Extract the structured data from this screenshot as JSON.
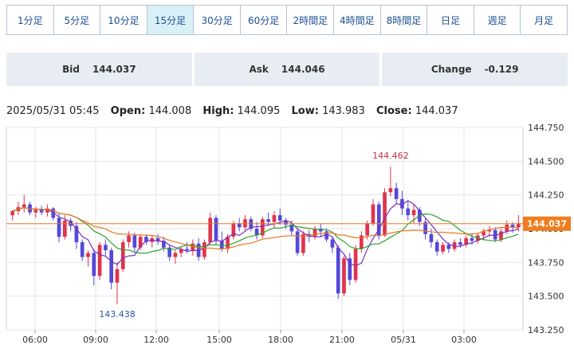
{
  "timeframes": {
    "active_index": 3,
    "items": [
      "1分足",
      "5分足",
      "10分足",
      "15分足",
      "30分足",
      "60分足",
      "2時間足",
      "4時間足",
      "8時間足",
      "日足",
      "週足",
      "月足"
    ]
  },
  "quotes": {
    "bid_label": "Bid",
    "bid_value": "144.037",
    "ask_label": "Ask",
    "ask_value": "144.046",
    "change_label": "Change",
    "change_value": "-0.129"
  },
  "ohlc": {
    "date": "2025/05/31 05:45",
    "open_label": "Open:",
    "open_value": "144.008",
    "high_label": "High:",
    "high_value": "144.095",
    "low_label": "Low:",
    "low_value": "143.983",
    "close_label": "Close:",
    "close_value": "144.037"
  },
  "colors": {
    "up": "#e0334d",
    "down": "#5548d9",
    "ma_fast": "#7b2fbf",
    "ma_mid": "#2aa52a",
    "ma_slow": "#e87722",
    "price_line": "#e87722",
    "price_label_bg": "#f07d1e",
    "grid": "#e6e6e6"
  },
  "chart_data": {
    "type": "candlestick",
    "ylim": [
      143.25,
      144.75
    ],
    "y_ticks": [
      "144.750",
      "144.500",
      "144.250",
      "144.000",
      "143.750",
      "143.500",
      "143.250"
    ],
    "x_ticks": [
      "06:00",
      "09:00",
      "12:00",
      "15:00",
      "18:00",
      "21:00",
      "05/31",
      "03:00"
    ],
    "current_price": "144.037",
    "annotations": {
      "high_label": "144.462",
      "low_label": "143.438"
    },
    "candles": [
      [
        144.1,
        144.14,
        144.06,
        144.13
      ],
      [
        144.13,
        144.2,
        144.1,
        144.16
      ],
      [
        144.16,
        144.25,
        144.12,
        144.18
      ],
      [
        144.18,
        144.2,
        144.1,
        144.12
      ],
      [
        144.12,
        144.16,
        144.08,
        144.14
      ],
      [
        144.14,
        144.17,
        144.1,
        144.12
      ],
      [
        144.12,
        144.18,
        144.09,
        144.15
      ],
      [
        144.15,
        144.16,
        144.06,
        144.08
      ],
      [
        144.08,
        144.12,
        143.9,
        143.94
      ],
      [
        143.94,
        144.1,
        143.92,
        144.06
      ],
      [
        144.06,
        144.08,
        143.98,
        144.02
      ],
      [
        144.02,
        144.05,
        143.85,
        143.9
      ],
      [
        143.9,
        143.92,
        143.76,
        143.79
      ],
      [
        143.79,
        143.84,
        143.72,
        143.82
      ],
      [
        143.82,
        143.85,
        143.58,
        143.65
      ],
      [
        143.65,
        143.9,
        143.62,
        143.88
      ],
      [
        143.88,
        143.92,
        143.8,
        143.84
      ],
      [
        143.84,
        143.86,
        143.55,
        143.6
      ],
      [
        143.6,
        143.75,
        143.44,
        143.7
      ],
      [
        143.7,
        143.92,
        143.68,
        143.9
      ],
      [
        143.9,
        143.98,
        143.86,
        143.95
      ],
      [
        143.95,
        143.97,
        143.82,
        143.86
      ],
      [
        143.86,
        143.96,
        143.84,
        143.94
      ],
      [
        143.94,
        143.96,
        143.88,
        143.9
      ],
      [
        143.9,
        143.95,
        143.86,
        143.93
      ],
      [
        143.93,
        143.96,
        143.88,
        143.91
      ],
      [
        143.91,
        143.94,
        143.83,
        143.86
      ],
      [
        143.86,
        143.88,
        143.76,
        143.79
      ],
      [
        143.79,
        143.84,
        143.74,
        143.82
      ],
      [
        143.82,
        143.87,
        143.79,
        143.85
      ],
      [
        143.85,
        143.9,
        143.82,
        143.84
      ],
      [
        143.84,
        143.92,
        143.8,
        143.89
      ],
      [
        143.89,
        143.93,
        143.76,
        143.79
      ],
      [
        143.79,
        143.92,
        143.77,
        143.9
      ],
      [
        143.9,
        144.12,
        143.88,
        144.08
      ],
      [
        144.08,
        144.1,
        143.88,
        143.91
      ],
      [
        143.91,
        143.98,
        143.83,
        143.85
      ],
      [
        143.85,
        143.96,
        143.82,
        143.94
      ],
      [
        143.94,
        144.06,
        143.92,
        144.04
      ],
      [
        144.04,
        144.08,
        143.98,
        144.01
      ],
      [
        144.01,
        144.1,
        143.99,
        144.07
      ],
      [
        144.07,
        144.09,
        143.98,
        144.0
      ],
      [
        144.0,
        144.05,
        143.92,
        143.95
      ],
      [
        143.95,
        144.09,
        143.93,
        144.07
      ],
      [
        144.07,
        144.12,
        144.02,
        144.05
      ],
      [
        144.05,
        144.13,
        144.0,
        144.1
      ],
      [
        144.1,
        144.15,
        144.03,
        144.06
      ],
      [
        144.06,
        144.08,
        144.0,
        144.03
      ],
      [
        144.03,
        144.06,
        143.95,
        143.98
      ],
      [
        143.98,
        144.0,
        143.8,
        143.82
      ],
      [
        143.82,
        143.98,
        143.8,
        143.96
      ],
      [
        143.96,
        143.99,
        143.9,
        143.94
      ],
      [
        143.94,
        144.02,
        143.92,
        144.0
      ],
      [
        144.0,
        144.04,
        143.94,
        143.98
      ],
      [
        143.98,
        144.0,
        143.9,
        143.92
      ],
      [
        143.92,
        143.94,
        143.82,
        143.86
      ],
      [
        143.86,
        143.88,
        143.48,
        143.52
      ],
      [
        143.52,
        143.8,
        143.5,
        143.78
      ],
      [
        143.78,
        143.82,
        143.58,
        143.62
      ],
      [
        143.62,
        143.88,
        143.6,
        143.85
      ],
      [
        143.85,
        143.98,
        143.82,
        143.95
      ],
      [
        143.95,
        144.06,
        143.92,
        144.04
      ],
      [
        144.04,
        144.22,
        144.02,
        144.18
      ],
      [
        144.18,
        144.2,
        143.92,
        143.95
      ],
      [
        143.95,
        144.3,
        143.94,
        144.27
      ],
      [
        144.27,
        144.46,
        144.24,
        144.3
      ],
      [
        144.3,
        144.34,
        144.18,
        144.22
      ],
      [
        144.22,
        144.28,
        144.1,
        144.15
      ],
      [
        144.15,
        144.2,
        144.06,
        144.1
      ],
      [
        144.1,
        144.18,
        144.04,
        144.14
      ],
      [
        144.14,
        144.16,
        144.02,
        144.05
      ],
      [
        144.05,
        144.08,
        143.92,
        143.96
      ],
      [
        143.96,
        144.0,
        143.86,
        143.9
      ],
      [
        143.9,
        143.92,
        143.8,
        143.83
      ],
      [
        143.83,
        143.9,
        143.81,
        143.88
      ],
      [
        143.88,
        143.9,
        143.82,
        143.85
      ],
      [
        143.85,
        143.92,
        143.83,
        143.9
      ],
      [
        143.9,
        143.93,
        143.86,
        143.88
      ],
      [
        143.88,
        143.95,
        143.86,
        143.93
      ],
      [
        143.93,
        143.96,
        143.88,
        143.91
      ],
      [
        143.91,
        143.97,
        143.89,
        143.95
      ],
      [
        143.95,
        144.0,
        143.92,
        143.98
      ],
      [
        143.98,
        144.02,
        143.94,
        143.99
      ],
      [
        143.99,
        144.01,
        143.9,
        143.92
      ],
      [
        143.92,
        144.0,
        143.9,
        143.98
      ],
      [
        143.98,
        144.06,
        143.96,
        144.03
      ],
      [
        144.03,
        144.05,
        143.97,
        144.01
      ],
      [
        144.01,
        144.1,
        143.98,
        144.04
      ]
    ]
  }
}
